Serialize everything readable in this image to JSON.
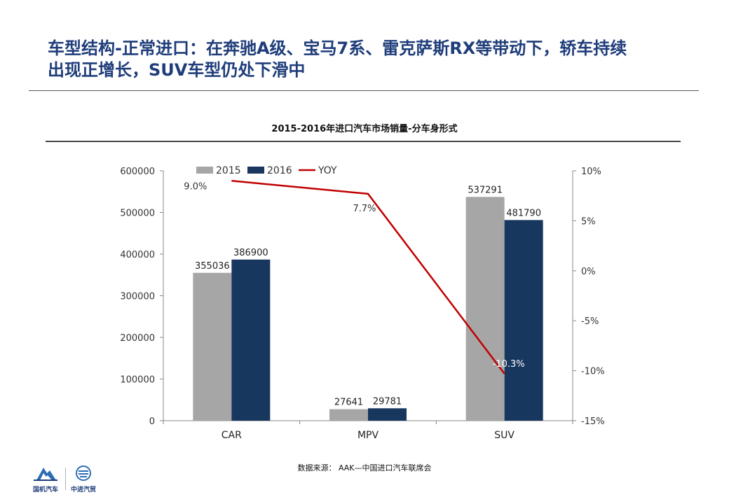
{
  "slide": {
    "title_line1": "车型结构-正常进口：在奔驰A级、宝马7系、雷克萨斯RX等带动下，轿车持续",
    "title_line2": "出现正增长，SUV车型仍处下滑中",
    "source": "数据来源： AAK—中国进口汽车联席会"
  },
  "logos": {
    "left_text": "国机汽车",
    "right_text": "中进汽贸"
  },
  "colors": {
    "series_2015": "#a6a6a6",
    "series_2016": "#17375e",
    "yoy_line": "#c00000",
    "title": "#1f3d7a"
  },
  "chart_data": {
    "type": "bar",
    "title": "2015-2016年进口汽车市场销量-分车身形式",
    "categories": [
      "CAR",
      "MPV",
      "SUV"
    ],
    "series": [
      {
        "name": "2015",
        "values": [
          355036,
          27641,
          537291
        ],
        "labels": [
          "355036",
          "27641",
          "537291"
        ]
      },
      {
        "name": "2016",
        "values": [
          386900,
          29781,
          481790
        ],
        "labels": [
          "386900",
          "29781",
          "481790"
        ]
      }
    ],
    "line_series": {
      "name": "YOY",
      "axis": "right",
      "values": [
        9.0,
        7.7,
        -10.3
      ],
      "labels": [
        "9.0%",
        "7.7%",
        "-10.3%"
      ]
    },
    "ylim": [
      0,
      600000
    ],
    "yticks": [
      "0",
      "100000",
      "200000",
      "300000",
      "400000",
      "500000",
      "600000"
    ],
    "y2lim": [
      -15,
      10
    ],
    "y2ticks": [
      "-15%",
      "-10%",
      "-5%",
      "0%",
      "5%",
      "10%"
    ],
    "legend": {
      "position": "top",
      "entries": [
        "2015",
        "2016",
        "YOY"
      ]
    },
    "grid": false
  }
}
